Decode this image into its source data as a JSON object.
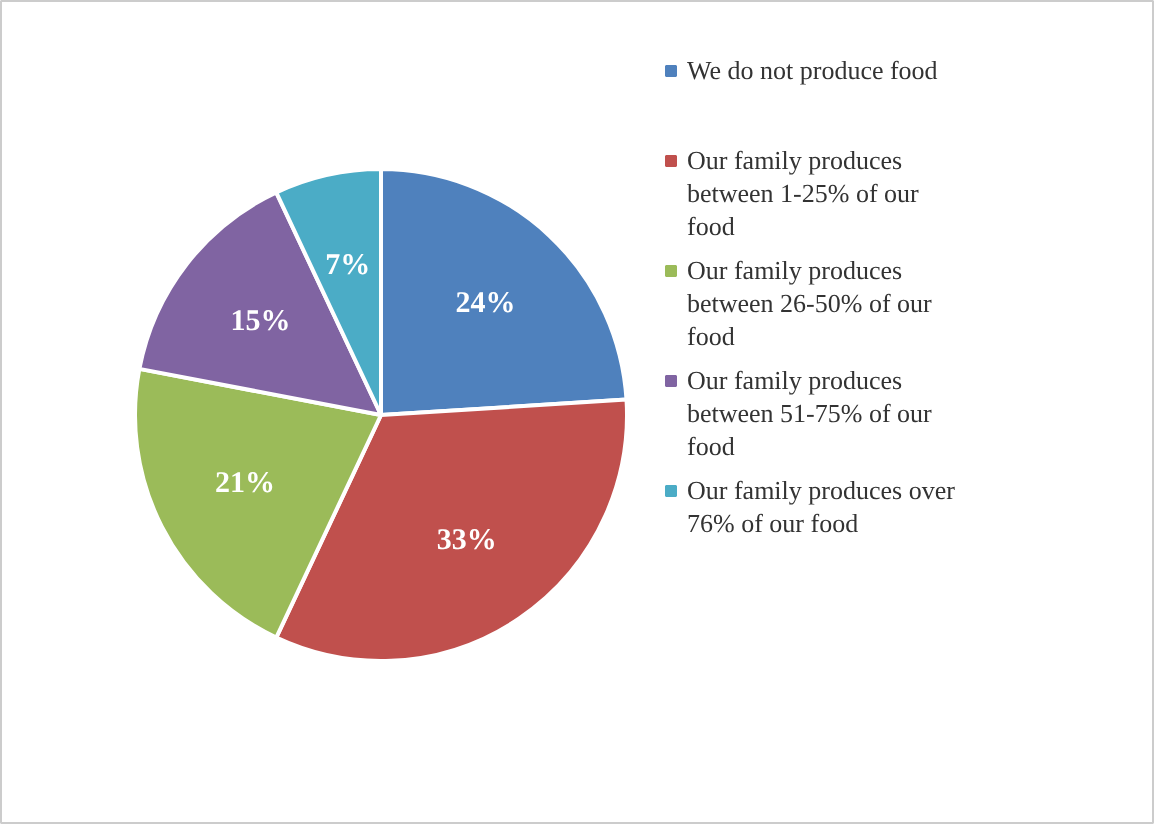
{
  "chart_data": {
    "type": "pie",
    "categories": [
      "We do not produce food",
      "Our family produces between 1-25% of our food",
      "Our family produces between 26-50% of our food",
      "Our family produces between 51-75% of our food",
      "Our family produces over 76% of our food"
    ],
    "values": [
      24,
      33,
      21,
      15,
      7
    ],
    "value_labels": [
      "24%",
      "33%",
      "21%",
      "15%",
      "7%"
    ],
    "colors": [
      "#4f81bd",
      "#c0504d",
      "#9bbb59",
      "#8064a2",
      "#4bacc6"
    ],
    "legend": "right"
  }
}
